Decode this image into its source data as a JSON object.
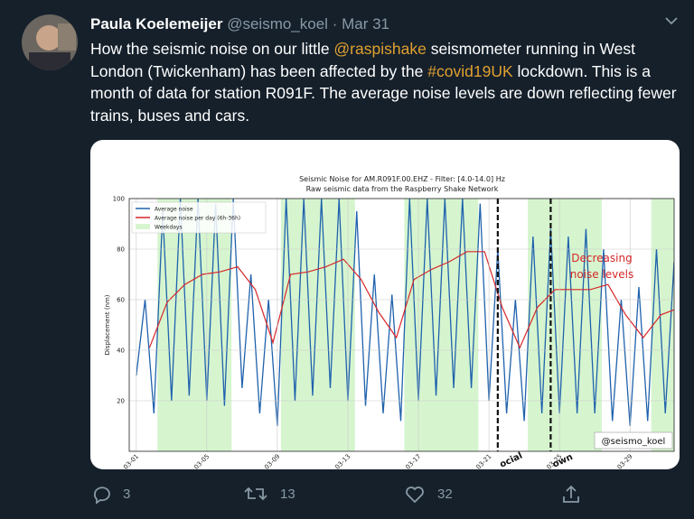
{
  "tweet": {
    "author": "Paula Koelemeijer",
    "handle": "@seismo_koel",
    "separator": "·",
    "date": "Mar 31",
    "text": [
      {
        "text": "How the seismic noise on our little "
      },
      {
        "text": "@raspishake",
        "link": true
      },
      {
        "text": " seismometer running in West London (Twickenham) has been affected by the "
      },
      {
        "text": "#covid19UK",
        "link": true
      },
      {
        "text": " lockdown. This is a month of data for station R091F. The average noise levels are down reflecting fewer trains, buses and cars."
      }
    ],
    "actions": {
      "replies": "3",
      "retweets": "13",
      "likes": "32"
    }
  },
  "chart_data": {
    "type": "line",
    "title": "Seismic Noise for AM.R091F.00.EHZ - Filter: [4.0-14.0] Hz",
    "subtitle": "Raw seismic  data from the Raspberry Shake Network",
    "ylabel": "Displacement (nm)",
    "ylim": [
      0,
      100
    ],
    "yticks": [
      20,
      40,
      60,
      80,
      100
    ],
    "grid": true,
    "xlim": [
      -0.4,
      30.5
    ],
    "xticks": [
      {
        "value": 0,
        "label": "03-01"
      },
      {
        "value": 4,
        "label": "03-05"
      },
      {
        "value": 8,
        "label": "03-09"
      },
      {
        "value": 12,
        "label": "03-13"
      },
      {
        "value": 16,
        "label": "03-17"
      },
      {
        "value": 20,
        "label": "03-21"
      },
      {
        "value": 24,
        "label": "03-25"
      },
      {
        "value": 28,
        "label": "03-29"
      }
    ],
    "series": [
      {
        "name": "Average noise",
        "color": "#1f62ad",
        "x": [
          0,
          0.5,
          1,
          1.5,
          2,
          2.5,
          3,
          3.5,
          4,
          4.5,
          5,
          5.5,
          6,
          6.5,
          7,
          7.5,
          8,
          8.5,
          9,
          9.5,
          10,
          10.5,
          11,
          11.5,
          12,
          12.5,
          13,
          13.5,
          14,
          14.5,
          15,
          15.5,
          16,
          16.5,
          17,
          17.5,
          18,
          18.5,
          19,
          19.5,
          20,
          20.5,
          21,
          21.5,
          22,
          22.5,
          23,
          23.5,
          24,
          24.5,
          25,
          25.5,
          26,
          26.5,
          27,
          27.5,
          28,
          28.5,
          29,
          29.5,
          30,
          30.5
        ],
        "values": [
          30,
          60,
          15,
          95,
          20,
          100,
          22,
          100,
          20,
          98,
          18,
          100,
          25,
          70,
          15,
          60,
          10,
          100,
          20,
          100,
          22,
          100,
          25,
          100,
          20,
          95,
          18,
          70,
          15,
          62,
          12,
          100,
          20,
          100,
          22,
          100,
          25,
          100,
          25,
          98,
          20,
          80,
          15,
          60,
          12,
          85,
          15,
          88,
          15,
          85,
          15,
          88,
          15,
          80,
          12,
          60,
          10,
          65,
          12,
          80,
          15,
          75
        ]
      },
      {
        "name": "Average noise per day (6h-36h)",
        "color": "#d62728",
        "x": [
          0.75,
          1.75,
          2.75,
          3.75,
          4.75,
          5.75,
          6.75,
          7.75,
          8.75,
          9.75,
          10.75,
          11.75,
          12.75,
          13.75,
          14.75,
          15.75,
          16.75,
          17.75,
          18.75,
          19.75,
          20.75,
          21.75,
          22.75,
          23.75,
          24.75,
          25.75,
          26.75,
          27.75,
          28.75,
          29.75,
          30.5
        ],
        "values": [
          41,
          59,
          66,
          70,
          71,
          73,
          64,
          43,
          70,
          71,
          73,
          76,
          68,
          55,
          45,
          68,
          72,
          75,
          79,
          79,
          57,
          41,
          57,
          64,
          64,
          64,
          66,
          54,
          45,
          54,
          56
        ]
      }
    ],
    "weekdays": {
      "name": "Weekdays",
      "color": "#d6f5cf",
      "spans": [
        [
          1.2,
          5.4
        ],
        [
          8.2,
          12.4
        ],
        [
          15.2,
          19.4
        ],
        [
          22.2,
          26.4
        ],
        [
          29.2,
          30.5
        ]
      ]
    },
    "events": [
      {
        "x": 20.5,
        "label": "ocial"
      },
      {
        "x": 23.5,
        "label": "own"
      }
    ],
    "annotation": "Decreasing noise levels",
    "watermark": "@seismo_koel"
  }
}
